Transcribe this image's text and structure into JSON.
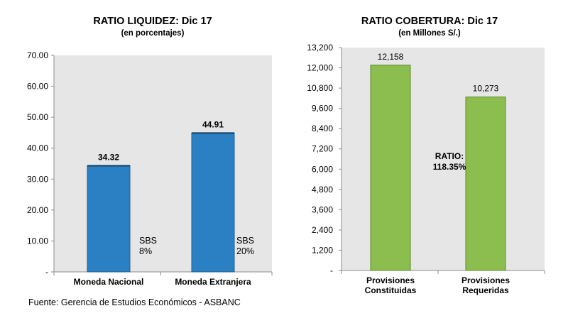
{
  "chart_data": [
    {
      "type": "bar",
      "title": "RATIO LIQUIDEZ:  Dic 17",
      "subtitle": "(en porcentajes)",
      "categories": [
        "Moneda Nacional",
        "Moneda Extranjera"
      ],
      "values": [
        34.32,
        44.91
      ],
      "data_labels": [
        "34.32",
        "44.91"
      ],
      "ylim": [
        0,
        70
      ],
      "yticks": [
        "-",
        "10.00",
        "20.00",
        "30.00",
        "40.00",
        "50.00",
        "60.00",
        "70.00"
      ],
      "annotations": [
        {
          "lines": [
            "SBS",
            "8%"
          ]
        },
        {
          "lines": [
            "SBS",
            "20%"
          ]
        }
      ],
      "plot_background": "#e6e6e6",
      "bar_color": "#2a80c3",
      "grid": false
    },
    {
      "type": "bar",
      "title": "RATIO COBERTURA:  Dic 17",
      "subtitle": "(en Millones S/.)",
      "categories": [
        [
          "Provisiones",
          "Constituidas"
        ],
        [
          "Provisiones",
          "Requeridas"
        ]
      ],
      "values": [
        12158,
        10273
      ],
      "data_labels": [
        "12,158",
        "10,273"
      ],
      "ylim": [
        0,
        13200
      ],
      "yticks": [
        "-",
        "1,200",
        "2,400",
        "3,600",
        "4,800",
        "6,000",
        "7,200",
        "8,400",
        "9,600",
        "10,800",
        "12,000",
        "13,200"
      ],
      "annotations": [
        {
          "lines": [
            "RATIO:",
            "118.35%"
          ]
        }
      ],
      "plot_background": "#e6e6e6",
      "bar_color": "#8bbd4f",
      "grid": false
    }
  ],
  "source": "Fuente: Gerencia de Estudios Económicos - ASBANC"
}
